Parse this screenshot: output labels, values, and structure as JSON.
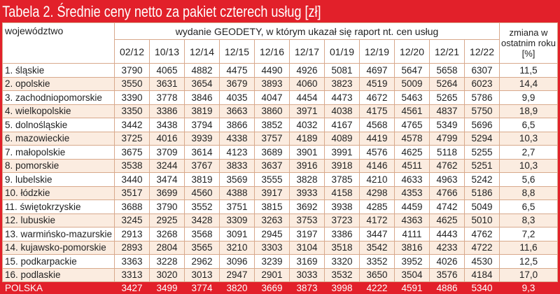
{
  "title": "Tabela 2. Średnie ceny netto za pakiet czterech usług [zł]",
  "colors": {
    "accent": "#e2202a",
    "alt_row": "#fbece0"
  },
  "header": {
    "region": "województwo",
    "edition": "wydanie GEODETY, w którym ukazał się raport nt. cen usług",
    "change": "zmiana w ostatnim roku [%]",
    "editions": [
      "02/12",
      "10/13",
      "12/14",
      "12/15",
      "12/16",
      "12/17",
      "01/19",
      "12/19",
      "12/20",
      "12/21",
      "12/22"
    ]
  },
  "rows": [
    {
      "name": "1. śląskie",
      "values": [
        "3790",
        "4065",
        "4882",
        "4475",
        "4490",
        "4926",
        "5081",
        "4697",
        "5647",
        "5658",
        "6307"
      ],
      "change": "11,5"
    },
    {
      "name": "2. opolskie",
      "values": [
        "3550",
        "3631",
        "3654",
        "3679",
        "3893",
        "4060",
        "3823",
        "4519",
        "5009",
        "5264",
        "6023"
      ],
      "change": "14,4"
    },
    {
      "name": "3. zachodniopomorskie",
      "values": [
        "3390",
        "3778",
        "3846",
        "4035",
        "4047",
        "4454",
        "4473",
        "4672",
        "5463",
        "5265",
        "5786"
      ],
      "change": "9,9"
    },
    {
      "name": "4. wielkopolskie",
      "values": [
        "3350",
        "3386",
        "3819",
        "3663",
        "3860",
        "3971",
        "4038",
        "4175",
        "4561",
        "4837",
        "5750"
      ],
      "change": "18,9"
    },
    {
      "name": "5. dolnośląskie",
      "values": [
        "3442",
        "3438",
        "3794",
        "3866",
        "3852",
        "4032",
        "4167",
        "4568",
        "4765",
        "5349",
        "5696"
      ],
      "change": "6,5"
    },
    {
      "name": "6. mazowieckie",
      "values": [
        "3725",
        "4016",
        "3939",
        "4338",
        "3757",
        "4189",
        "4089",
        "4419",
        "4578",
        "4799",
        "5294"
      ],
      "change": "10,3"
    },
    {
      "name": "7. małopolskie",
      "values": [
        "3675",
        "3709",
        "3614",
        "4123",
        "3689",
        "3901",
        "3991",
        "4576",
        "4625",
        "5118",
        "5255"
      ],
      "change": "2,7"
    },
    {
      "name": "8. pomorskie",
      "values": [
        "3538",
        "3244",
        "3767",
        "3833",
        "3637",
        "3916",
        "3918",
        "4146",
        "4511",
        "4762",
        "5251"
      ],
      "change": "10,3"
    },
    {
      "name": "9. lubelskie",
      "values": [
        "3440",
        "3474",
        "3819",
        "3569",
        "3555",
        "3828",
        "3785",
        "4210",
        "4633",
        "4963",
        "5242"
      ],
      "change": "5,6"
    },
    {
      "name": "10. łódzkie",
      "values": [
        "3517",
        "3699",
        "4560",
        "4388",
        "3917",
        "3933",
        "4158",
        "4298",
        "4353",
        "4766",
        "5186"
      ],
      "change": "8,8"
    },
    {
      "name": "11. świętokrzyskie",
      "values": [
        "3688",
        "3790",
        "3552",
        "3751",
        "3815",
        "3692",
        "3938",
        "4285",
        "4459",
        "4742",
        "5049"
      ],
      "change": "6,5"
    },
    {
      "name": "12. lubuskie",
      "values": [
        "3245",
        "2925",
        "3428",
        "3309",
        "3263",
        "3753",
        "3723",
        "4172",
        "4363",
        "4625",
        "5010"
      ],
      "change": "8,3"
    },
    {
      "name": "13. warmińsko-mazurskie",
      "values": [
        "2913",
        "3268",
        "3568",
        "3091",
        "2945",
        "3197",
        "3386",
        "3447",
        "4111",
        "4443",
        "4762"
      ],
      "change": "7,2"
    },
    {
      "name": "14. kujawsko-pomorskie",
      "values": [
        "2893",
        "2804",
        "3565",
        "3210",
        "3303",
        "3104",
        "3518",
        "3542",
        "3816",
        "4233",
        "4722"
      ],
      "change": "11,6"
    },
    {
      "name": "15. podkarpackie",
      "values": [
        "3363",
        "3228",
        "2962",
        "3096",
        "3239",
        "3169",
        "3320",
        "3352",
        "3952",
        "4026",
        "4530"
      ],
      "change": "12,5"
    },
    {
      "name": "16. podlaskie",
      "values": [
        "3313",
        "3020",
        "3013",
        "2947",
        "2901",
        "3033",
        "3532",
        "3650",
        "3504",
        "3576",
        "4184"
      ],
      "change": "17,0"
    }
  ],
  "total": {
    "name": "POLSKA",
    "values": [
      "3427",
      "3499",
      "3774",
      "3820",
      "3669",
      "3873",
      "3998",
      "4222",
      "4591",
      "4886",
      "5340"
    ],
    "change": "9,3"
  }
}
